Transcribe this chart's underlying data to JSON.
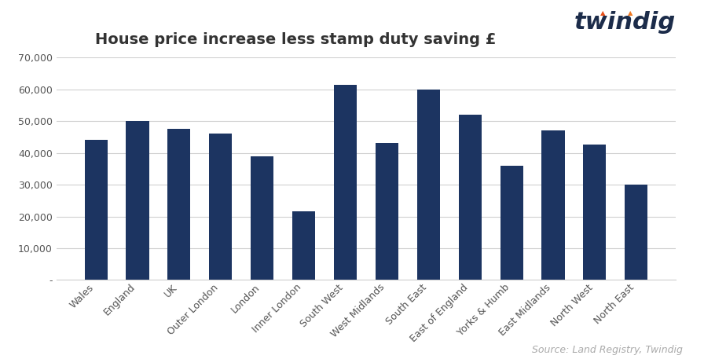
{
  "title": "House price increase less stamp duty saving £",
  "categories": [
    "Wales",
    "England",
    "UK",
    "Outer London",
    "London",
    "Inner London",
    "South West",
    "West Midlands",
    "South East",
    "East of England",
    "Yorks & Humb",
    "East Midlands",
    "North West",
    "North East"
  ],
  "values": [
    44000,
    50000,
    47500,
    46000,
    39000,
    21500,
    61500,
    43000,
    60000,
    52000,
    36000,
    47000,
    42500,
    30000
  ],
  "bar_color": "#1c3461",
  "background_color": "#ffffff",
  "ylim": [
    0,
    70000
  ],
  "yticks": [
    0,
    10000,
    20000,
    30000,
    40000,
    50000,
    60000,
    70000
  ],
  "ytick_labels": [
    "-",
    "10,000",
    "20,000",
    "30,000",
    "40,000",
    "50,000",
    "60,000",
    "70,000"
  ],
  "source_text": "Source: Land Registry, Twindig",
  "twindig_text": "twindig",
  "grid_color": "#d0d0d0",
  "title_fontsize": 14,
  "tick_fontsize": 9,
  "source_fontsize": 9,
  "twindig_fontsize": 22
}
